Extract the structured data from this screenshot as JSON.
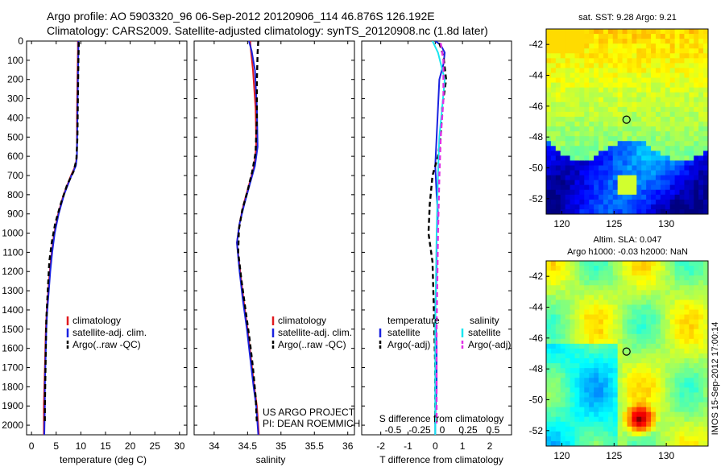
{
  "header": {
    "line1": "Argo profile: AO 5903320_96 06-Sep-2012 20120906_114 46.876S 126.192E",
    "line2": "Climatology: CARS2009. Satellite-adjusted climatology: synTS_20120908.nc (1.8d later)"
  },
  "side_label": "IMOS 15-Sep-2012 17:00:14",
  "colors": {
    "climatology": "#e0191e",
    "satellite": "#1a22e0",
    "argo": "#000000",
    "sal_satellite": "#19e6f0",
    "sal_argo": "#e030e6"
  },
  "chart_data": [
    {
      "type": "line",
      "id": "temperature",
      "xlabel": "temperature (deg C)",
      "ylabel": "",
      "xlim": [
        -1,
        31.5
      ],
      "ylim": [
        2050,
        0
      ],
      "xticks": [
        0,
        5,
        10,
        15,
        20,
        25,
        30
      ],
      "yticks": [
        0,
        100,
        200,
        300,
        400,
        500,
        600,
        700,
        800,
        900,
        1000,
        1100,
        1200,
        1300,
        1400,
        1500,
        1600,
        1700,
        1800,
        1900,
        2000
      ],
      "legend": [
        "climatology",
        "satellite-adj. clim.",
        "Argo(..raw -QC)"
      ],
      "series": [
        {
          "name": "climatology",
          "style": "solid",
          "color": "#e0191e",
          "x": [
            9.4,
            9.4,
            9.3,
            9.2,
            9.2,
            8.9,
            8.0,
            6.5,
            5.4,
            4.6,
            4.1,
            3.7,
            3.4,
            3.1,
            2.9,
            2.8,
            2.7,
            2.6,
            2.5,
            2.5
          ],
          "y": [
            0,
            50,
            200,
            400,
            600,
            650,
            700,
            800,
            900,
            1000,
            1100,
            1200,
            1300,
            1400,
            1500,
            1600,
            1700,
            1800,
            1900,
            2050
          ]
        },
        {
          "name": "satellite-adj. clim.",
          "style": "solid",
          "color": "#1a22e0",
          "x": [
            9.5,
            9.5,
            9.4,
            9.3,
            9.2,
            9.0,
            8.1,
            6.6,
            5.5,
            4.7,
            4.2,
            3.8,
            3.5,
            3.2,
            3.0,
            2.9,
            2.8,
            2.7,
            2.7,
            2.6
          ],
          "y": [
            0,
            50,
            200,
            400,
            600,
            650,
            700,
            800,
            900,
            1000,
            1100,
            1200,
            1300,
            1400,
            1500,
            1600,
            1700,
            1800,
            1900,
            2050
          ]
        },
        {
          "name": "Argo(..raw -QC)",
          "style": "dashed",
          "color": "#000000",
          "x": [
            9.6,
            9.5,
            9.4,
            9.3,
            9.1,
            8.5,
            7.2,
            5.9,
            4.8,
            4.1,
            3.6,
            3.3,
            3.0,
            2.9,
            2.8,
            2.7,
            2.7
          ],
          "y": [
            5,
            100,
            300,
            500,
            620,
            680,
            750,
            850,
            950,
            1050,
            1150,
            1300,
            1450,
            1600,
            1750,
            1900,
            1990
          ]
        }
      ]
    },
    {
      "type": "line",
      "id": "salinity",
      "xlabel": "salinity",
      "ylabel": "",
      "xlim": [
        33.7,
        36.1
      ],
      "ylim": [
        2050,
        0
      ],
      "xticks": [
        34,
        34.5,
        35,
        35.5,
        36
      ],
      "legend": [
        "climatology",
        "satellite-adj. clim.",
        "Argo(..raw -QC)"
      ],
      "annotation": [
        "US ARGO PROJECT",
        "PI: DEAN ROEMMICH"
      ],
      "series": [
        {
          "name": "climatology",
          "style": "solid",
          "color": "#e0191e",
          "x": [
            34.54,
            34.55,
            34.58,
            34.62,
            34.63,
            34.6,
            34.52,
            34.44,
            34.38,
            34.34,
            34.39,
            34.44,
            34.5,
            34.55,
            34.6,
            34.64,
            34.66,
            34.67
          ],
          "y": [
            0,
            50,
            150,
            350,
            550,
            650,
            750,
            850,
            950,
            1050,
            1200,
            1350,
            1500,
            1650,
            1800,
            1900,
            2000,
            2050
          ]
        },
        {
          "name": "satellite-adj. clim.",
          "style": "solid",
          "color": "#1a22e0",
          "x": [
            34.52,
            34.56,
            34.61,
            34.64,
            34.65,
            34.61,
            34.53,
            34.45,
            34.38,
            34.34,
            34.38,
            34.43,
            34.49,
            34.54,
            34.59,
            34.63,
            34.65,
            34.66
          ],
          "y": [
            0,
            50,
            150,
            350,
            550,
            650,
            750,
            850,
            950,
            1050,
            1200,
            1350,
            1500,
            1650,
            1800,
            1900,
            2000,
            2050
          ]
        },
        {
          "name": "Argo(..raw -QC)",
          "style": "dashed",
          "color": "#000000",
          "x": [
            34.66,
            34.65,
            34.64,
            34.64,
            34.62,
            34.57,
            34.5,
            34.42,
            34.37,
            34.36,
            34.41,
            34.47,
            34.53,
            34.58,
            34.62,
            34.64
          ],
          "y": [
            0,
            60,
            200,
            400,
            580,
            680,
            780,
            880,
            980,
            1100,
            1250,
            1400,
            1550,
            1700,
            1850,
            1990
          ]
        }
      ]
    },
    {
      "type": "line",
      "id": "difference",
      "xlabel": "T difference from climatology",
      "ylabel": "",
      "xlim": [
        -2.7,
        2.8
      ],
      "ylim": [
        2050,
        0
      ],
      "xticks": [
        -2,
        -1,
        0,
        1,
        2
      ],
      "top_axis_label": "S difference from climatology",
      "top_xticks": [
        "-0.5",
        "-0.25",
        "0",
        "0.25",
        "0.5"
      ],
      "legend": [
        [
          "temperature",
          "salinity"
        ],
        [
          "satellite",
          "satellite"
        ],
        [
          "Argo(-adj)",
          "Argo(-adj)"
        ]
      ],
      "series": [
        {
          "name": "T satellite",
          "style": "solid",
          "color": "#1a22e0",
          "x": [
            0.0,
            0.2,
            0.35,
            0.3,
            0.15,
            0.1,
            0.05,
            0.0,
            0.05,
            0.1,
            0.05,
            0.05,
            0.0,
            0.05,
            0.05,
            0.0,
            0.0
          ],
          "y": [
            0,
            20,
            60,
            120,
            200,
            350,
            500,
            650,
            800,
            900,
            1000,
            1200,
            1400,
            1600,
            1800,
            1950,
            2050
          ]
        },
        {
          "name": "T Argo(-adj)",
          "style": "dashed",
          "color": "#000000",
          "x": [
            0.15,
            0.3,
            0.4,
            0.25,
            0.2,
            0.1,
            -0.1,
            -0.2,
            -0.25,
            -0.1,
            -0.05,
            0.0,
            0.0
          ],
          "y": [
            10,
            80,
            200,
            350,
            500,
            600,
            700,
            850,
            1000,
            1150,
            1400,
            1700,
            1990
          ]
        },
        {
          "name": "S satellite",
          "style": "solid",
          "color": "#19e6f0",
          "x": [
            -0.1,
            0.1,
            0.35,
            0.25,
            0.15,
            0.1,
            0.05,
            0.0,
            0.0
          ],
          "y": [
            0,
            60,
            200,
            350,
            500,
            700,
            1000,
            1500,
            2050
          ]
        },
        {
          "name": "S Argo(-adj)",
          "style": "dashed",
          "color": "#e030e6",
          "x": [
            0.2,
            0.3,
            0.3,
            0.2,
            0.15,
            0.1,
            0.05,
            0.05
          ],
          "y": [
            10,
            100,
            300,
            500,
            700,
            1000,
            1500,
            1990
          ]
        }
      ]
    },
    {
      "type": "heatmap",
      "id": "sst-map",
      "title": "sat. SST: 9.28 Argo: 9.21",
      "xlim": [
        118.5,
        134
      ],
      "ylim": [
        -53,
        -41
      ],
      "xticks": [
        120,
        125,
        130
      ],
      "yticks": [
        -42,
        -44,
        -46,
        -48,
        -50,
        -52
      ],
      "marker": {
        "lon": 126.192,
        "lat": -46.876
      }
    },
    {
      "type": "heatmap",
      "id": "sla-map",
      "title": "Altim. SLA: 0.047",
      "subtitle": "Argo h1000: -0.03 h2000: NaN",
      "xlim": [
        118.5,
        134
      ],
      "ylim": [
        -53,
        -41
      ],
      "xticks": [
        120,
        125,
        130
      ],
      "yticks": [
        -42,
        -44,
        -46,
        -48,
        -50,
        -52
      ],
      "marker": {
        "lon": 126.192,
        "lat": -46.876
      }
    }
  ]
}
